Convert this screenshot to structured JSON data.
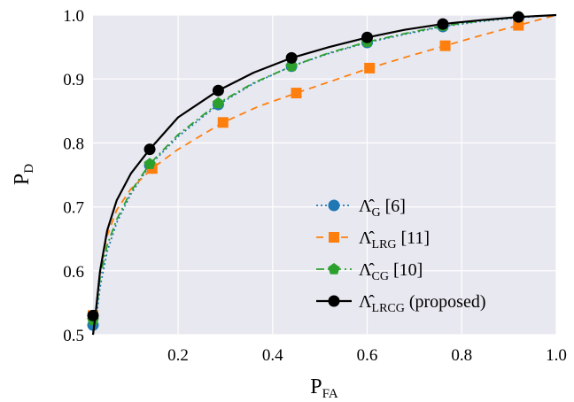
{
  "chart_data": {
    "type": "line",
    "title": "",
    "xlabel": {
      "main": "P",
      "sub": "FA"
    },
    "ylabel": {
      "main": "P",
      "sub": "D"
    },
    "xlim": [
      0.02,
      1.0
    ],
    "ylim": [
      0.5,
      1.0
    ],
    "xticks": [
      0.2,
      0.4,
      0.6,
      0.8,
      1.0
    ],
    "xtick_labels": [
      "0.2",
      "0.4",
      "0.6",
      "0.8",
      "1.0"
    ],
    "yticks": [
      0.5,
      0.6,
      0.7,
      0.8,
      0.9,
      1.0
    ],
    "ytick_labels": [
      "0.5",
      "0.6",
      "0.7",
      "0.8",
      "0.9",
      "1.0"
    ],
    "grid": true,
    "background": "#e8e8f0",
    "legend_position": "lower-right",
    "series": [
      {
        "name": "Λ̂G [6]",
        "legend": {
          "sym": "Λ̂",
          "sub": "G",
          "suffix": " [6]"
        },
        "color": "#1f77b4",
        "dash": "dotted",
        "marker": "circle",
        "markers": [
          [
            0.02,
            0.515
          ],
          [
            0.14,
            0.765
          ],
          [
            0.285,
            0.86
          ],
          [
            0.44,
            0.92
          ],
          [
            0.6,
            0.957
          ],
          [
            0.76,
            0.982
          ],
          [
            0.92,
            0.996
          ]
        ],
        "curve": [
          [
            0.02,
            0.5
          ],
          [
            0.025,
            0.515
          ],
          [
            0.035,
            0.575
          ],
          [
            0.05,
            0.63
          ],
          [
            0.07,
            0.675
          ],
          [
            0.1,
            0.72
          ],
          [
            0.14,
            0.765
          ],
          [
            0.2,
            0.81
          ],
          [
            0.285,
            0.86
          ],
          [
            0.36,
            0.893
          ],
          [
            0.44,
            0.92
          ],
          [
            0.52,
            0.94
          ],
          [
            0.6,
            0.957
          ],
          [
            0.68,
            0.97
          ],
          [
            0.76,
            0.982
          ],
          [
            0.84,
            0.99
          ],
          [
            0.92,
            0.996
          ],
          [
            1.0,
            1.0
          ]
        ]
      },
      {
        "name": "Λ̂LRG [11]",
        "legend": {
          "sym": "Λ̂",
          "sub": "LRG",
          "suffix": " [11]"
        },
        "color": "#ff7f0e",
        "dash": "dashed",
        "marker": "square",
        "markers": [
          [
            0.02,
            0.53
          ],
          [
            0.145,
            0.76
          ],
          [
            0.295,
            0.832
          ],
          [
            0.45,
            0.878
          ],
          [
            0.605,
            0.917
          ],
          [
            0.765,
            0.952
          ],
          [
            0.92,
            0.984
          ]
        ],
        "curve": [
          [
            0.02,
            0.5
          ],
          [
            0.025,
            0.53
          ],
          [
            0.035,
            0.6
          ],
          [
            0.05,
            0.655
          ],
          [
            0.07,
            0.695
          ],
          [
            0.1,
            0.728
          ],
          [
            0.145,
            0.76
          ],
          [
            0.2,
            0.79
          ],
          [
            0.295,
            0.832
          ],
          [
            0.37,
            0.857
          ],
          [
            0.45,
            0.878
          ],
          [
            0.53,
            0.898
          ],
          [
            0.605,
            0.917
          ],
          [
            0.69,
            0.936
          ],
          [
            0.765,
            0.952
          ],
          [
            0.84,
            0.968
          ],
          [
            0.92,
            0.984
          ],
          [
            1.0,
            1.0
          ]
        ]
      },
      {
        "name": "Λ̂CG [10]",
        "legend": {
          "sym": "Λ̂",
          "sub": "CG",
          "suffix": " [10]"
        },
        "color": "#2ca02c",
        "dash": "dashdot",
        "marker": "pentagon",
        "markers": [
          [
            0.02,
            0.523
          ],
          [
            0.14,
            0.767
          ],
          [
            0.285,
            0.862
          ],
          [
            0.44,
            0.92
          ],
          [
            0.6,
            0.958
          ],
          [
            0.76,
            0.983
          ],
          [
            0.92,
            0.997
          ]
        ],
        "curve": [
          [
            0.02,
            0.5
          ],
          [
            0.025,
            0.523
          ],
          [
            0.035,
            0.59
          ],
          [
            0.05,
            0.64
          ],
          [
            0.07,
            0.68
          ],
          [
            0.1,
            0.724
          ],
          [
            0.14,
            0.767
          ],
          [
            0.2,
            0.813
          ],
          [
            0.285,
            0.862
          ],
          [
            0.36,
            0.894
          ],
          [
            0.44,
            0.92
          ],
          [
            0.52,
            0.941
          ],
          [
            0.6,
            0.958
          ],
          [
            0.68,
            0.971
          ],
          [
            0.76,
            0.983
          ],
          [
            0.84,
            0.991
          ],
          [
            0.92,
            0.997
          ],
          [
            1.0,
            1.0
          ]
        ]
      },
      {
        "name": "Λ̂LRCG (proposed)",
        "legend": {
          "sym": "Λ̂",
          "sub": "LRCG",
          "suffix": " (proposed)"
        },
        "color": "#000000",
        "dash": "solid",
        "marker": "circle",
        "markers": [
          [
            0.02,
            0.53
          ],
          [
            0.14,
            0.79
          ],
          [
            0.285,
            0.882
          ],
          [
            0.44,
            0.933
          ],
          [
            0.6,
            0.965
          ],
          [
            0.76,
            0.986
          ],
          [
            0.92,
            0.997
          ]
        ],
        "curve": [
          [
            0.02,
            0.5
          ],
          [
            0.025,
            0.53
          ],
          [
            0.035,
            0.6
          ],
          [
            0.05,
            0.663
          ],
          [
            0.07,
            0.71
          ],
          [
            0.1,
            0.752
          ],
          [
            0.14,
            0.79
          ],
          [
            0.2,
            0.84
          ],
          [
            0.285,
            0.882
          ],
          [
            0.36,
            0.91
          ],
          [
            0.44,
            0.933
          ],
          [
            0.52,
            0.95
          ],
          [
            0.6,
            0.965
          ],
          [
            0.68,
            0.977
          ],
          [
            0.76,
            0.986
          ],
          [
            0.84,
            0.992
          ],
          [
            0.92,
            0.997
          ],
          [
            1.0,
            1.0
          ]
        ]
      }
    ]
  }
}
